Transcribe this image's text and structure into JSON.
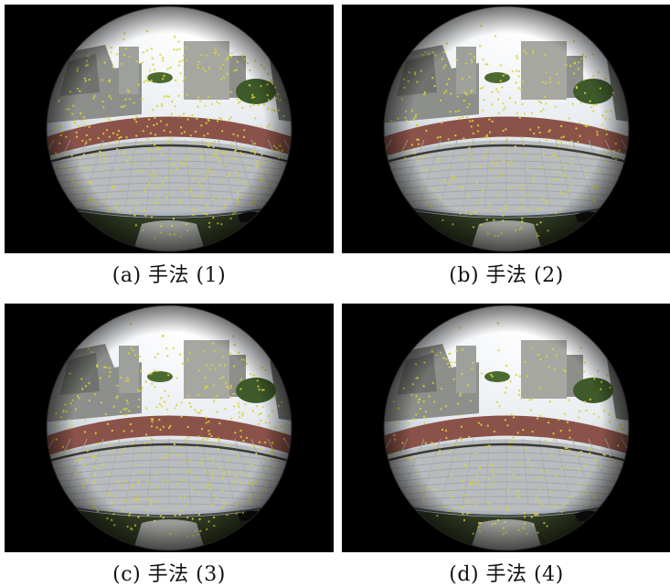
{
  "panels": [
    {
      "caption": "(a) 手法 (1)"
    },
    {
      "caption": "(b) 手法 (2)"
    },
    {
      "caption": "(c) 手法 (3)"
    },
    {
      "caption": "(d) 手法 (4)"
    }
  ]
}
